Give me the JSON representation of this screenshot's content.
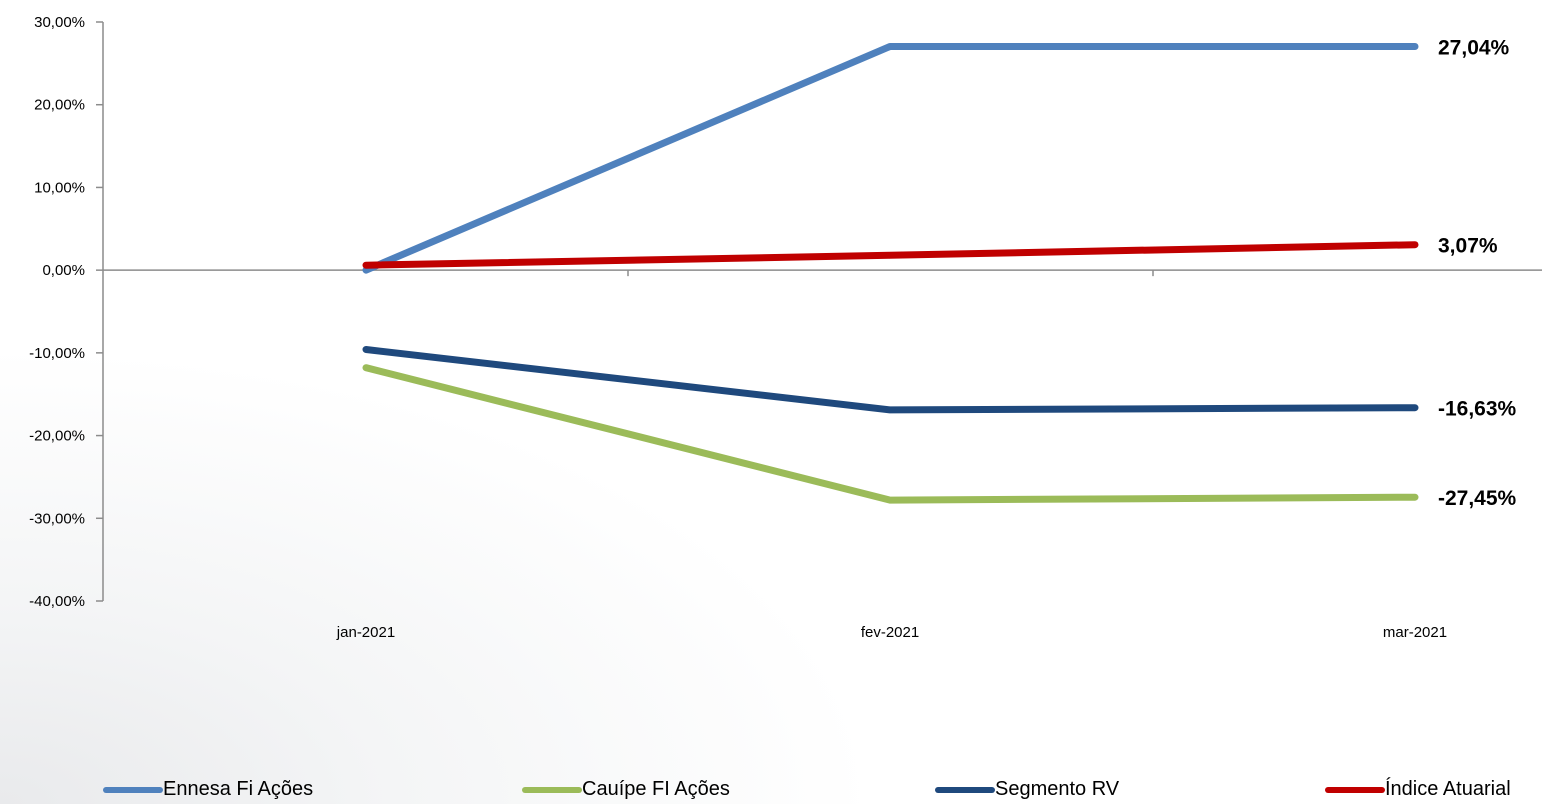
{
  "chart_data": {
    "type": "line",
    "categories": [
      "jan-2021",
      "fev-2021",
      "mar-2021"
    ],
    "ylim": [
      -40,
      30
    ],
    "yticks": [
      "30,00%",
      "20,00%",
      "10,00%",
      "0,00%",
      "-10,00%",
      "-20,00%",
      "-30,00%",
      "-40,00%"
    ],
    "ytick_values": [
      30,
      20,
      10,
      0,
      -10,
      -20,
      -30,
      -40
    ],
    "series": [
      {
        "name": "Ennesa Fi Ações",
        "color": "#4f81bd",
        "values": [
          0.0,
          27.04,
          27.04
        ],
        "end_label": "27,04%"
      },
      {
        "name": "Cauípe FI Ações",
        "color": "#9bbb59",
        "values": [
          -11.8,
          -27.8,
          -27.45
        ],
        "end_label": "-27,45%"
      },
      {
        "name": "Segmento RV",
        "color": "#1f497d",
        "values": [
          -9.6,
          -16.9,
          -16.63
        ],
        "end_label": "-16,63%"
      },
      {
        "name": "Índice Atuarial",
        "color": "#c00000",
        "values": [
          0.6,
          1.8,
          3.07
        ],
        "end_label": "3,07%"
      }
    ],
    "legend_position": "bottom",
    "grid": false
  }
}
